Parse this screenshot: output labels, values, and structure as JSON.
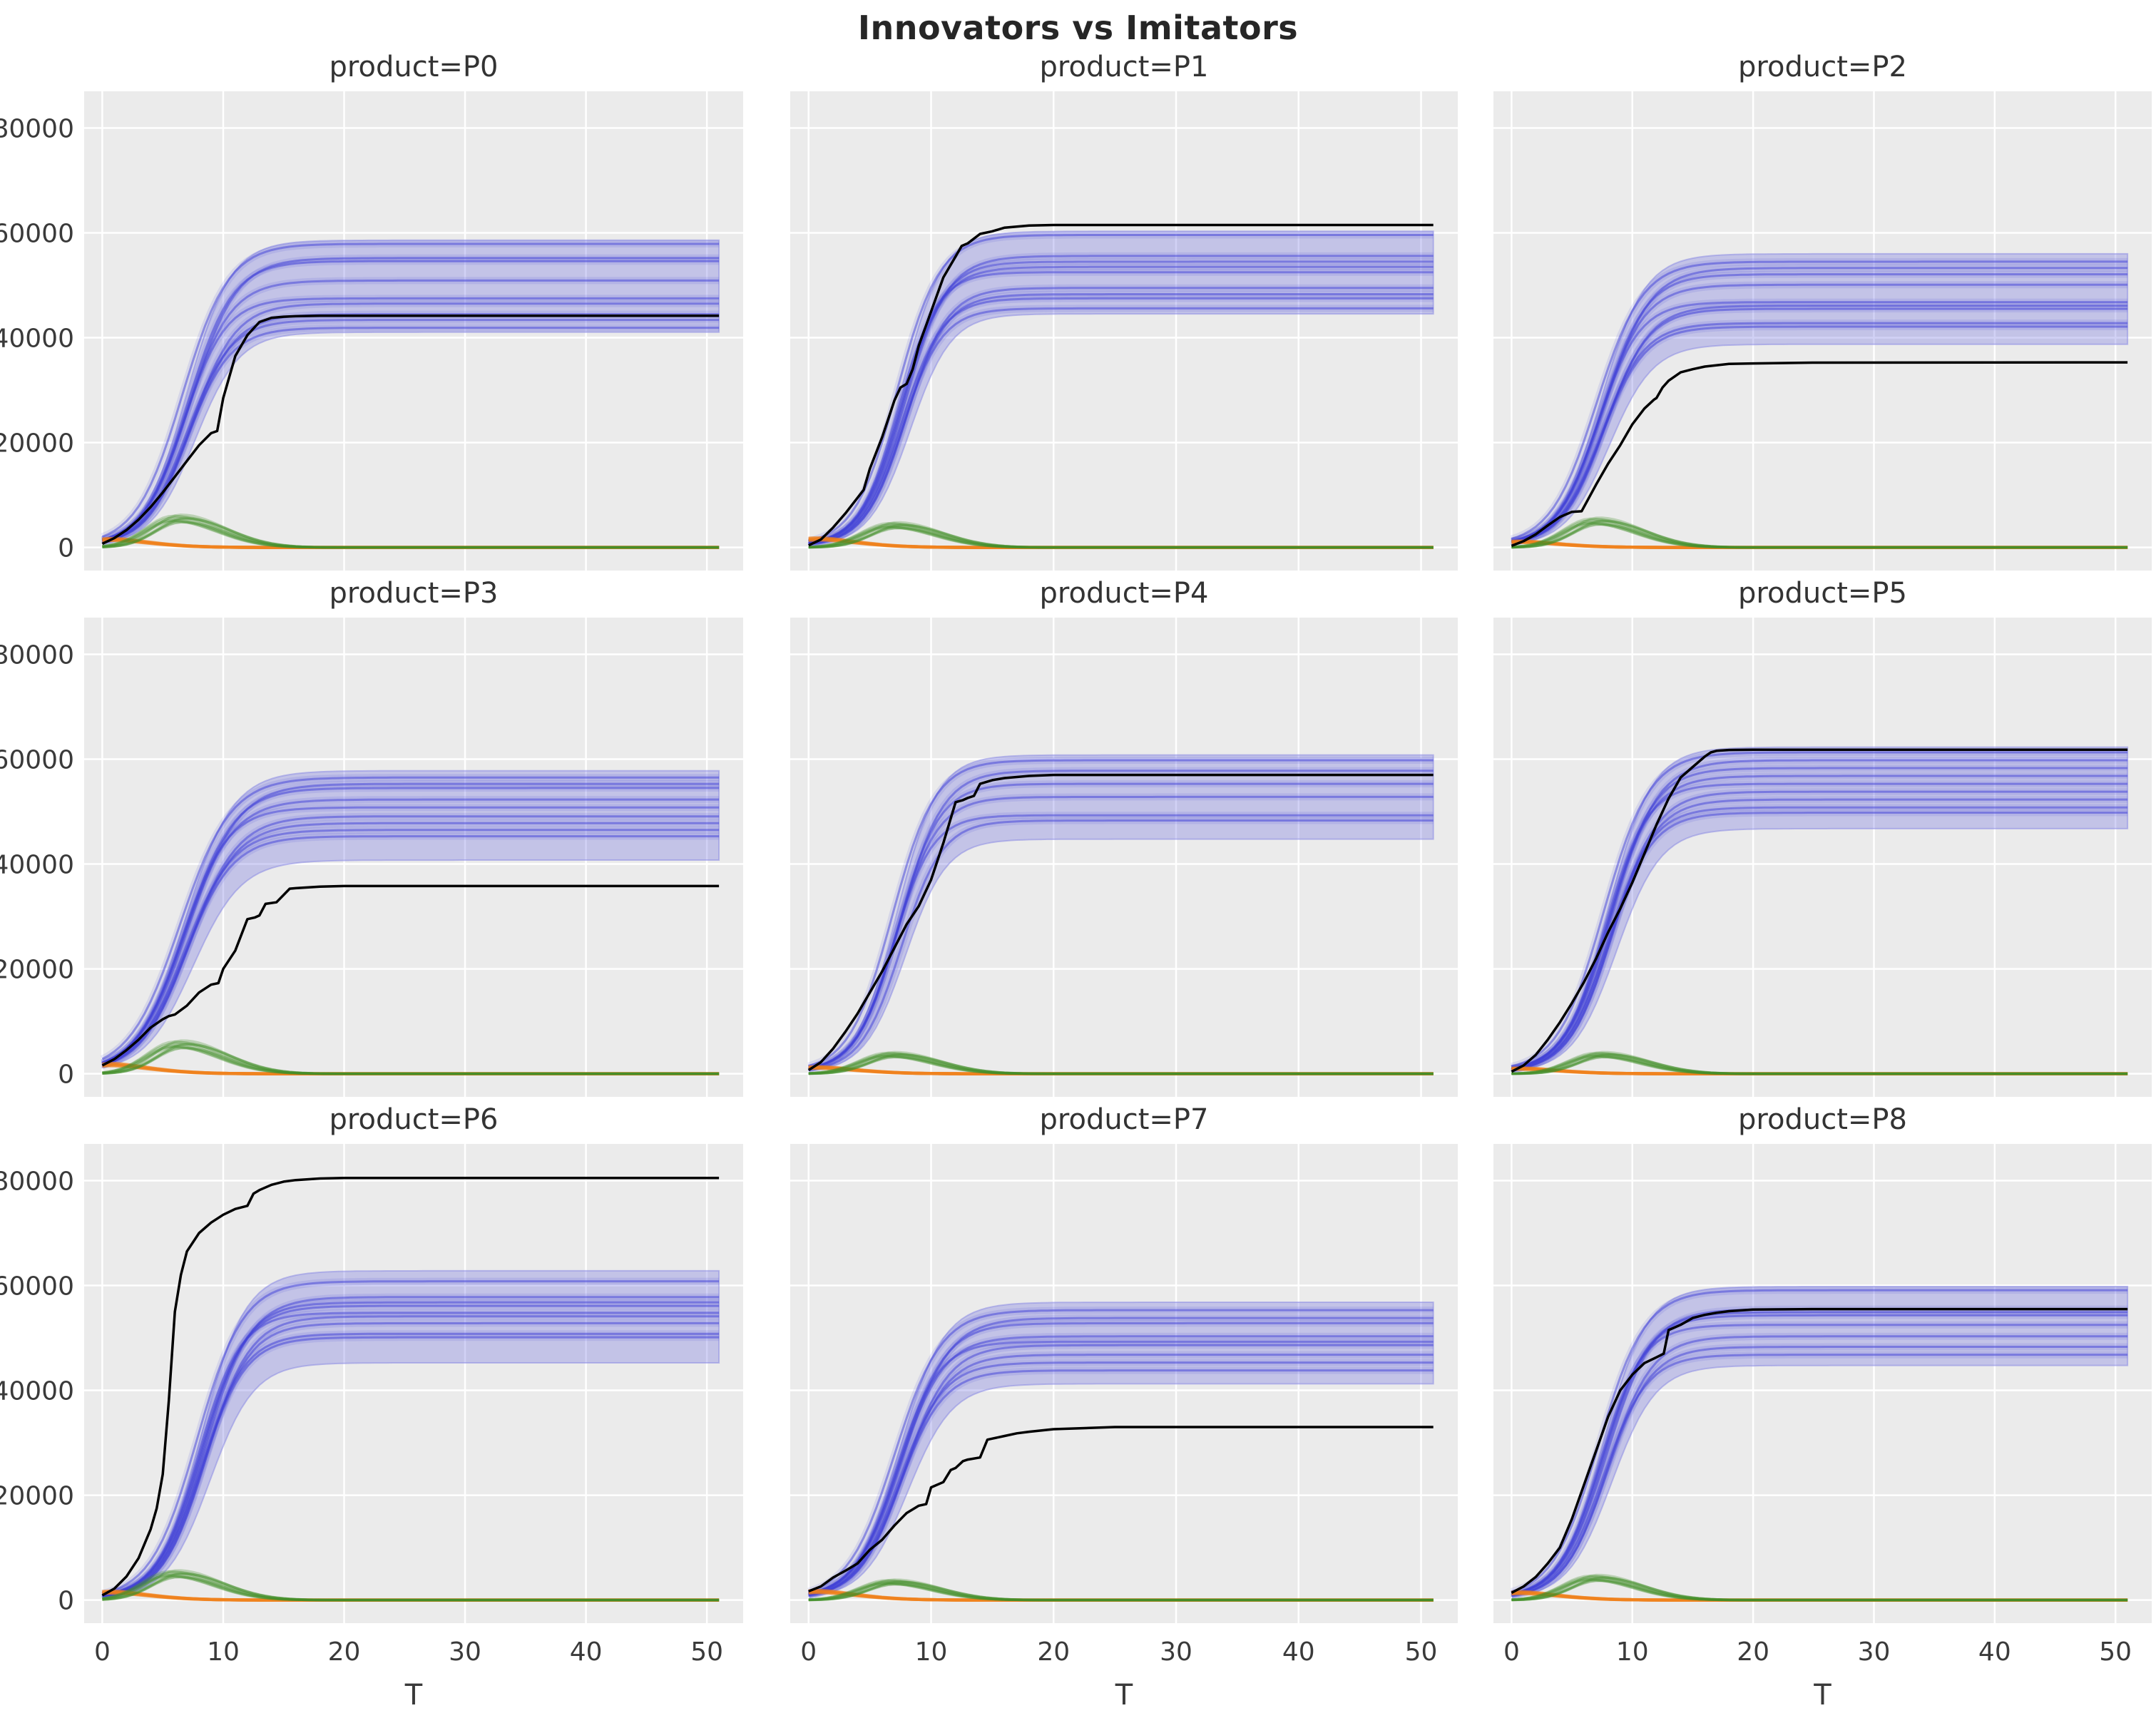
{
  "figure": {
    "title": "Innovators vs Imitators",
    "xlabel": "T",
    "x_ticks": [
      0,
      10,
      20,
      30,
      40,
      50
    ],
    "y_ticks": [
      0,
      20000,
      40000,
      60000,
      80000
    ],
    "xlim": [
      -1.5,
      53
    ],
    "ylim": [
      -4400,
      87000
    ],
    "colors": {
      "background": "#ffffff",
      "panel": "#ebebeb",
      "grid": "#ffffff",
      "black_line": "#000000",
      "blue_line": "#4040d8",
      "blue_band_fill": "#6666dd",
      "blue_band_edge": "#8c8ce4",
      "green_line": "#46912a",
      "orange_line": "#f08018",
      "tick_text": "#3a3a3a",
      "title_text": "#333333"
    }
  },
  "chart_data": {
    "type": "line",
    "note": "3x3 facet grid; each facet: black observed cumulative line, blue simulated trajectories with uncertainty band, green imitator-bump curves, orange decaying innovator curves",
    "x_range": [
      0,
      51
    ],
    "products": [
      {
        "product": "P0",
        "title": "product=P0",
        "black_line": [
          [
            0,
            700
          ],
          [
            1,
            1800
          ],
          [
            2,
            3300
          ],
          [
            3,
            5300
          ],
          [
            4,
            7700
          ],
          [
            5,
            10500
          ],
          [
            6,
            13500
          ],
          [
            7,
            16500
          ],
          [
            8,
            19500
          ],
          [
            9,
            21800
          ],
          [
            9.5,
            22200
          ],
          [
            10,
            28500
          ],
          [
            11,
            36500
          ],
          [
            12,
            40500
          ],
          [
            13,
            43000
          ],
          [
            14,
            43800
          ],
          [
            15,
            44000
          ],
          [
            16,
            44100
          ],
          [
            18,
            44200
          ],
          [
            51,
            44200
          ]
        ],
        "blue_band": {
          "low": 40800,
          "high": 58300,
          "t0": 7.0,
          "k": 0.55
        },
        "blue_lines": [
          57600,
          54900,
          54300,
          50600,
          47200,
          46200,
          44200,
          43100,
          41600
        ],
        "green_lines": {
          "peak": 5600,
          "t_peak": 6.3,
          "n": 12
        },
        "orange_lines": {
          "start": 1400,
          "n": 7
        }
      },
      {
        "product": "P1",
        "title": "product=P1",
        "black_line": [
          [
            0,
            400
          ],
          [
            1,
            1500
          ],
          [
            2,
            3800
          ],
          [
            3,
            6500
          ],
          [
            4,
            9500
          ],
          [
            4.5,
            11000
          ],
          [
            5,
            15000
          ],
          [
            6,
            21000
          ],
          [
            7,
            28000
          ],
          [
            7.5,
            30500
          ],
          [
            8,
            31200
          ],
          [
            8.5,
            34000
          ],
          [
            9,
            38500
          ],
          [
            10,
            45000
          ],
          [
            11,
            51500
          ],
          [
            12,
            55500
          ],
          [
            12.5,
            57500
          ],
          [
            13,
            58000
          ],
          [
            14,
            59800
          ],
          [
            15,
            60300
          ],
          [
            16,
            61000
          ],
          [
            18,
            61400
          ],
          [
            20,
            61500
          ],
          [
            51,
            61500
          ]
        ],
        "blue_band": {
          "low": 44300,
          "high": 60000,
          "t0": 7.6,
          "k": 0.6
        },
        "blue_lines": [
          59300,
          55300,
          54200,
          53200,
          52200,
          49200,
          48000,
          47200,
          45300
        ],
        "green_lines": {
          "peak": 4300,
          "t_peak": 7.0,
          "n": 12
        },
        "orange_lines": {
          "start": 1500,
          "n": 7
        }
      },
      {
        "product": "P2",
        "title": "product=P2",
        "black_line": [
          [
            0,
            300
          ],
          [
            1,
            1200
          ],
          [
            2,
            2500
          ],
          [
            3,
            4200
          ],
          [
            4,
            5800
          ],
          [
            5,
            6800
          ],
          [
            5.8,
            6900
          ],
          [
            7,
            12000
          ],
          [
            8,
            16000
          ],
          [
            9,
            19500
          ],
          [
            10,
            23500
          ],
          [
            11,
            26500
          ],
          [
            11.8,
            28200
          ],
          [
            12,
            28500
          ],
          [
            12.5,
            30500
          ],
          [
            13,
            31800
          ],
          [
            14,
            33400
          ],
          [
            15,
            34000
          ],
          [
            16,
            34500
          ],
          [
            18,
            35000
          ],
          [
            20,
            35100
          ],
          [
            25,
            35250
          ],
          [
            51,
            35300
          ]
        ],
        "blue_band": {
          "low": 38500,
          "high": 55700,
          "t0": 7.4,
          "k": 0.55
        },
        "blue_lines": [
          54200,
          53000,
          51800,
          49800,
          46500,
          45800,
          45200,
          42500,
          41800
        ],
        "green_lines": {
          "peak": 5100,
          "t_peak": 7.0,
          "n": 12
        },
        "orange_lines": {
          "start": 1000,
          "n": 7
        }
      },
      {
        "product": "P3",
        "title": "product=P3",
        "black_line": [
          [
            0,
            1600
          ],
          [
            1,
            2800
          ],
          [
            2,
            4500
          ],
          [
            3,
            6500
          ],
          [
            4,
            8800
          ],
          [
            5,
            10400
          ],
          [
            5.5,
            11000
          ],
          [
            6,
            11300
          ],
          [
            7,
            13000
          ],
          [
            8,
            15500
          ],
          [
            9,
            17000
          ],
          [
            9.6,
            17300
          ],
          [
            10,
            20000
          ],
          [
            11,
            23500
          ],
          [
            12,
            29500
          ],
          [
            12.6,
            29800
          ],
          [
            13,
            30200
          ],
          [
            13.5,
            32400
          ],
          [
            14.4,
            32700
          ],
          [
            15.5,
            35300
          ],
          [
            16,
            35400
          ],
          [
            18,
            35700
          ],
          [
            20,
            35800
          ],
          [
            51,
            35800
          ]
        ],
        "blue_band": {
          "low": 40500,
          "high": 57500,
          "t0": 6.8,
          "k": 0.5
        },
        "blue_lines": [
          56200,
          55000,
          54200,
          52000,
          50500,
          48800,
          47500,
          46200,
          45000
        ],
        "green_lines": {
          "peak": 5700,
          "t_peak": 6.4,
          "n": 12
        },
        "orange_lines": {
          "start": 1600,
          "n": 7
        }
      },
      {
        "product": "P4",
        "title": "product=P4",
        "black_line": [
          [
            0,
            700
          ],
          [
            1,
            2200
          ],
          [
            2,
            4800
          ],
          [
            3,
            8000
          ],
          [
            4,
            11500
          ],
          [
            5,
            15500
          ],
          [
            6,
            19500
          ],
          [
            7,
            24000
          ],
          [
            8,
            28500
          ],
          [
            9,
            32000
          ],
          [
            10,
            37000
          ],
          [
            11,
            44000
          ],
          [
            12,
            51800
          ],
          [
            12.6,
            52200
          ],
          [
            13,
            52600
          ],
          [
            13.5,
            53000
          ],
          [
            14,
            55300
          ],
          [
            15,
            56000
          ],
          [
            16,
            56400
          ],
          [
            18,
            56800
          ],
          [
            20,
            57000
          ],
          [
            51,
            57000
          ]
        ],
        "blue_band": {
          "low": 44500,
          "high": 60500,
          "t0": 7.2,
          "k": 0.6
        },
        "blue_lines": [
          59500,
          57500,
          55000,
          52500,
          49000,
          48000
        ],
        "green_lines": {
          "peak": 3700,
          "t_peak": 6.8,
          "n": 12
        },
        "orange_lines": {
          "start": 1100,
          "n": 7
        }
      },
      {
        "product": "P5",
        "title": "product=P5",
        "black_line": [
          [
            0,
            400
          ],
          [
            1,
            1600
          ],
          [
            2,
            3600
          ],
          [
            3,
            6500
          ],
          [
            4,
            9800
          ],
          [
            5,
            13500
          ],
          [
            6,
            17500
          ],
          [
            7,
            22000
          ],
          [
            8,
            27000
          ],
          [
            9,
            31500
          ],
          [
            10,
            36500
          ],
          [
            11,
            42000
          ],
          [
            12,
            47500
          ],
          [
            13,
            52500
          ],
          [
            14,
            56500
          ],
          [
            15,
            58500
          ],
          [
            16,
            60500
          ],
          [
            16.5,
            61300
          ],
          [
            17,
            61600
          ],
          [
            18,
            61750
          ],
          [
            20,
            61800
          ],
          [
            51,
            61800
          ]
        ],
        "blue_band": {
          "low": 46500,
          "high": 62000,
          "t0": 8.0,
          "k": 0.55
        },
        "blue_lines": [
          61000,
          59500,
          58000,
          56500,
          55000,
          53500,
          52000,
          50500,
          49500
        ],
        "green_lines": {
          "peak": 3700,
          "t_peak": 7.4,
          "n": 12
        },
        "orange_lines": {
          "start": 900,
          "n": 7
        }
      },
      {
        "product": "P6",
        "title": "product=P6",
        "black_line": [
          [
            0,
            900
          ],
          [
            1,
            2200
          ],
          [
            2,
            4500
          ],
          [
            3,
            8000
          ],
          [
            4,
            13500
          ],
          [
            4.5,
            17500
          ],
          [
            5,
            24000
          ],
          [
            5.5,
            38000
          ],
          [
            6,
            55000
          ],
          [
            6.5,
            62000
          ],
          [
            7,
            66500
          ],
          [
            8,
            70000
          ],
          [
            9,
            72000
          ],
          [
            10,
            73500
          ],
          [
            11,
            74600
          ],
          [
            12,
            75200
          ],
          [
            12.5,
            77500
          ],
          [
            13,
            78200
          ],
          [
            14,
            79200
          ],
          [
            15,
            79800
          ],
          [
            16,
            80100
          ],
          [
            18,
            80400
          ],
          [
            20,
            80500
          ],
          [
            51,
            80500
          ]
        ],
        "blue_band": {
          "low": 45000,
          "high": 62500,
          "t0": 8.2,
          "k": 0.55
        },
        "blue_lines": [
          60500,
          57500,
          56500,
          55800,
          54500,
          53800,
          52500,
          50500,
          49800
        ],
        "green_lines": {
          "peak": 5100,
          "t_peak": 6.0,
          "n": 12
        },
        "orange_lines": {
          "start": 1400,
          "n": 7
        }
      },
      {
        "product": "P7",
        "title": "product=P7",
        "black_line": [
          [
            0,
            1700
          ],
          [
            1,
            2600
          ],
          [
            2,
            4300
          ],
          [
            3,
            5600
          ],
          [
            4,
            7000
          ],
          [
            5,
            9600
          ],
          [
            6,
            11500
          ],
          [
            7,
            14200
          ],
          [
            8,
            16600
          ],
          [
            9,
            18000
          ],
          [
            9.6,
            18300
          ],
          [
            10,
            21500
          ],
          [
            11,
            22500
          ],
          [
            11.6,
            24800
          ],
          [
            12,
            25200
          ],
          [
            12.6,
            26500
          ],
          [
            13,
            26800
          ],
          [
            14,
            27200
          ],
          [
            14.6,
            30600
          ],
          [
            15,
            30800
          ],
          [
            16,
            31300
          ],
          [
            17,
            31800
          ],
          [
            18,
            32100
          ],
          [
            20,
            32600
          ],
          [
            25,
            33000
          ],
          [
            51,
            33000
          ]
        ],
        "blue_band": {
          "low": 41000,
          "high": 56500,
          "t0": 7.4,
          "k": 0.55
        },
        "blue_lines": [
          55000,
          53500,
          52500,
          50000,
          49000,
          48300,
          46500,
          45000,
          43500
        ],
        "green_lines": {
          "peak": 3500,
          "t_peak": 6.8,
          "n": 12
        },
        "orange_lines": {
          "start": 1500,
          "n": 7
        }
      },
      {
        "product": "P8",
        "title": "product=P8",
        "black_line": [
          [
            0,
            1400
          ],
          [
            1,
            2600
          ],
          [
            2,
            4400
          ],
          [
            3,
            7000
          ],
          [
            4,
            10000
          ],
          [
            5,
            15500
          ],
          [
            6,
            22000
          ],
          [
            7,
            28500
          ],
          [
            8,
            35000
          ],
          [
            9,
            40000
          ],
          [
            10,
            43000
          ],
          [
            11,
            45200
          ],
          [
            12,
            46300
          ],
          [
            12.6,
            47000
          ],
          [
            13,
            51500
          ],
          [
            14,
            52500
          ],
          [
            15,
            53800
          ],
          [
            16,
            54400
          ],
          [
            17,
            54800
          ],
          [
            18,
            55100
          ],
          [
            20,
            55400
          ],
          [
            25,
            55500
          ],
          [
            51,
            55500
          ]
        ],
        "blue_band": {
          "low": 44500,
          "high": 59500,
          "t0": 7.6,
          "k": 0.55
        },
        "blue_lines": [
          58800,
          55200,
          54600,
          54000,
          52200,
          50000,
          48000,
          46500
        ],
        "green_lines": {
          "peak": 4300,
          "t_peak": 6.9,
          "n": 12
        },
        "orange_lines": {
          "start": 1300,
          "n": 7
        }
      }
    ]
  }
}
